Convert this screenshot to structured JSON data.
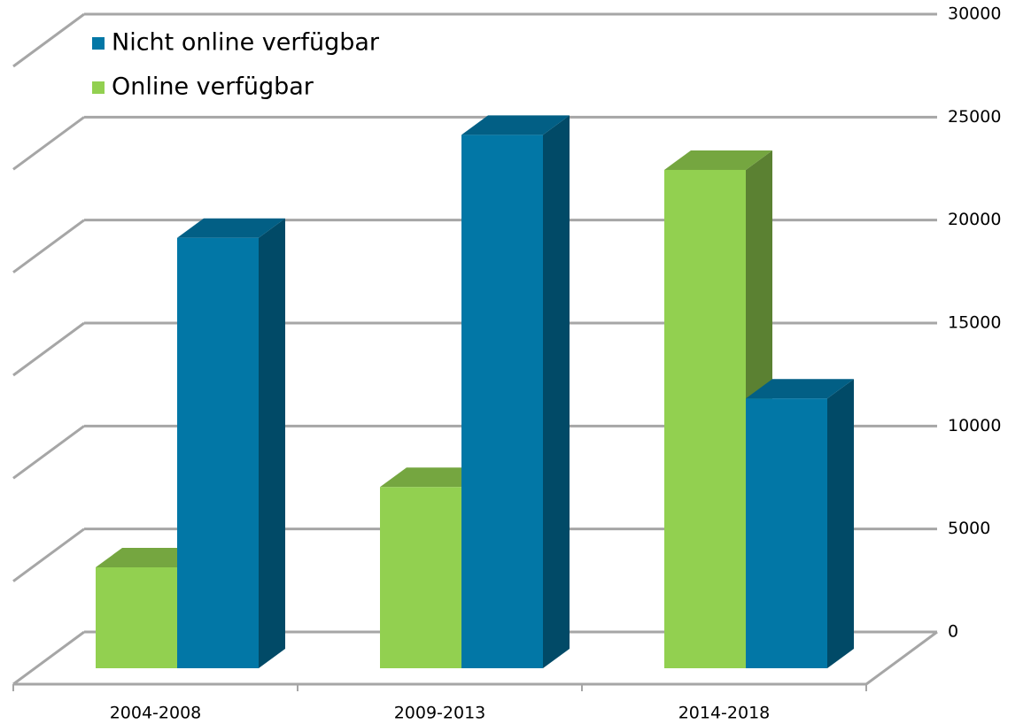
{
  "chart_data": {
    "type": "bar3d",
    "categories": [
      "2004-2008",
      "2009-2013",
      "2014-2018"
    ],
    "series": [
      {
        "name": "Online verfügbar",
        "color": "#92d050",
        "values": [
          4900,
          8800,
          24200
        ]
      },
      {
        "name": "Nicht online verfügbar",
        "color": "#0277a6",
        "values": [
          20900,
          25900,
          13100
        ]
      }
    ],
    "ylim": [
      0,
      30000
    ],
    "yticks": [
      0,
      5000,
      10000,
      15000,
      20000,
      25000,
      30000
    ],
    "grid": true,
    "legend": "top-left"
  }
}
